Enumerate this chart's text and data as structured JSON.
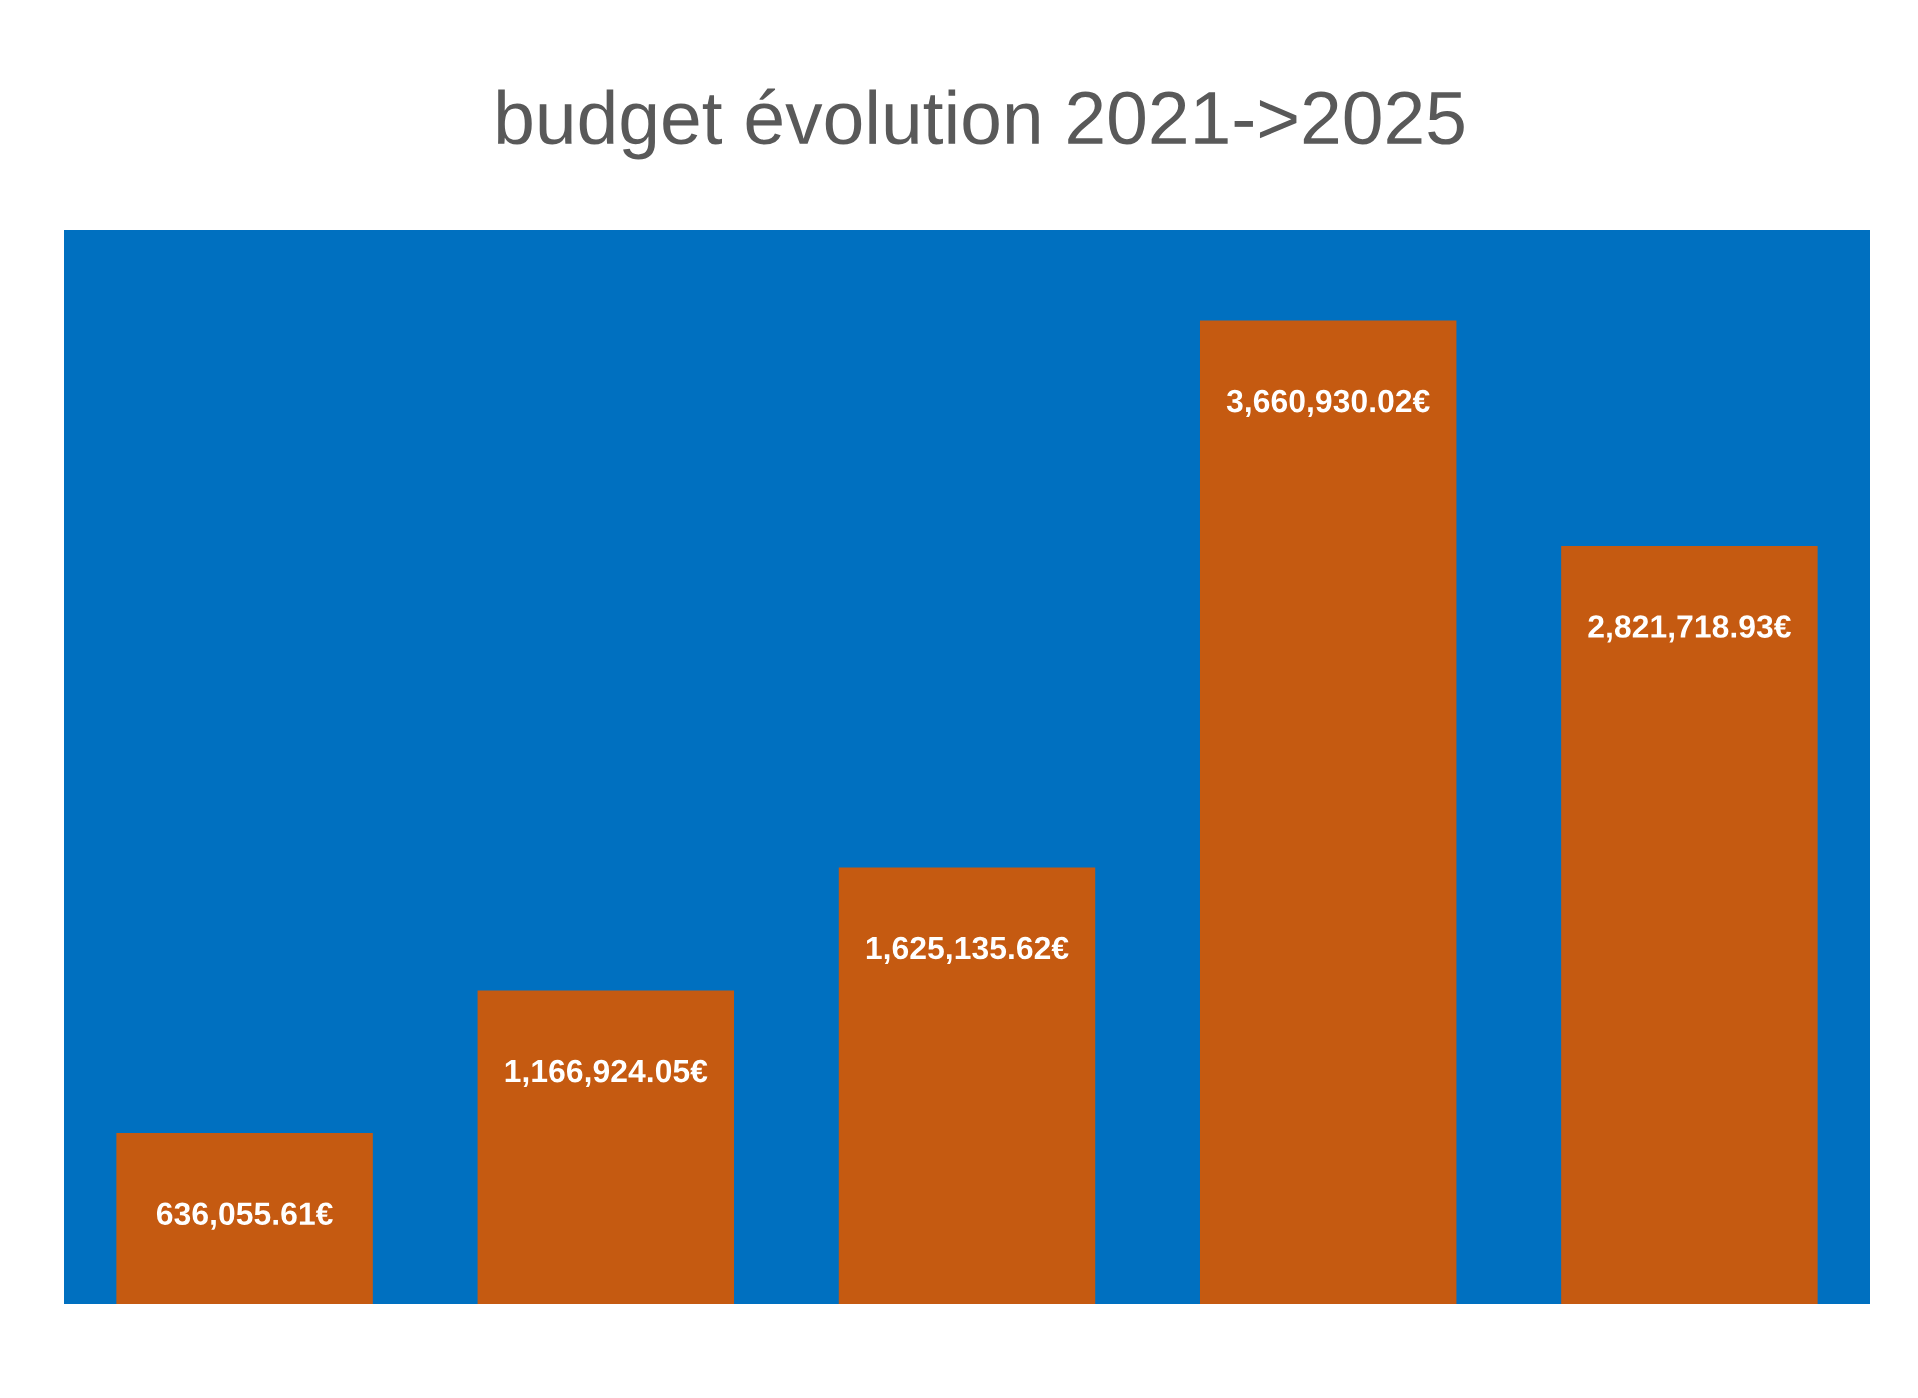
{
  "chart_data": {
    "type": "bar",
    "title": "budget évolution 2021->2025",
    "categories": [
      null,
      null,
      null,
      null,
      null
    ],
    "values": [
      636055.61,
      1166924.05,
      1625135.62,
      3660930.02,
      2821718.93
    ],
    "value_labels": [
      "636,055.61€",
      "1,166,924.05€",
      "1,625,135.62€",
      "3,660,930.02€",
      "2,821,718.93€"
    ],
    "color": "#c55a11",
    "grid": false,
    "legend": false,
    "tick_labels": false
  }
}
